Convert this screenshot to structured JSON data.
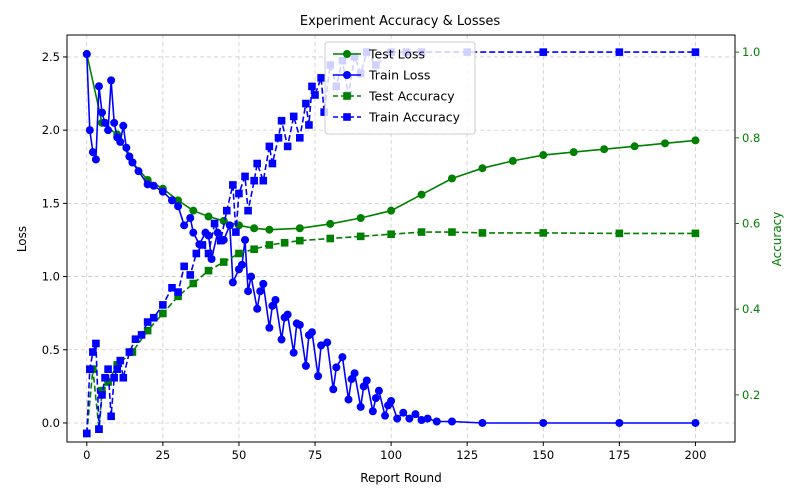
{
  "chart_data": {
    "type": "line",
    "title": "Experiment Accuracy & Losses",
    "xlabel": "Report Round",
    "ylabel_left": "Loss",
    "ylabel_right": "Accuracy",
    "xlim": [
      -6.5,
      213
    ],
    "ylim_left": [
      -0.13,
      2.65
    ],
    "ylim_right": [
      0.09,
      1.04
    ],
    "x_ticks": [
      0,
      25,
      50,
      75,
      100,
      125,
      150,
      175,
      200
    ],
    "y_left_ticks": [
      "0.0",
      "0.5",
      "1.0",
      "1.5",
      "2.0",
      "2.5"
    ],
    "y_right_ticks": [
      "0.2",
      "0.4",
      "0.6",
      "0.8",
      "1.0"
    ],
    "grid": true,
    "legend_position": "top-center",
    "colors": {
      "test": "#008000",
      "train": "#0000ff",
      "right_axis": "#008000",
      "grid": "#cccccc"
    },
    "loss_series": [
      {
        "name": "Test Loss",
        "color": "#008000",
        "marker": "circle",
        "style": "solid",
        "points": [
          [
            0,
            2.52
          ],
          [
            5,
            2.05
          ],
          [
            10,
            1.97
          ],
          [
            15,
            1.78
          ],
          [
            20,
            1.66
          ],
          [
            25,
            1.6
          ],
          [
            30,
            1.52
          ],
          [
            35,
            1.45
          ],
          [
            40,
            1.41
          ],
          [
            45,
            1.38
          ],
          [
            50,
            1.35
          ],
          [
            55,
            1.33
          ],
          [
            60,
            1.32
          ],
          [
            70,
            1.33
          ],
          [
            80,
            1.36
          ],
          [
            90,
            1.4
          ],
          [
            100,
            1.45
          ],
          [
            110,
            1.56
          ],
          [
            120,
            1.67
          ],
          [
            130,
            1.74
          ],
          [
            140,
            1.79
          ],
          [
            150,
            1.83
          ],
          [
            160,
            1.85
          ],
          [
            170,
            1.87
          ],
          [
            180,
            1.89
          ],
          [
            190,
            1.91
          ],
          [
            200,
            1.93
          ]
        ]
      },
      {
        "name": "Train Loss",
        "color": "#0000ff",
        "marker": "circle",
        "style": "solid",
        "points": [
          [
            0,
            2.52
          ],
          [
            1,
            2.0
          ],
          [
            2,
            1.85
          ],
          [
            3,
            1.8
          ],
          [
            4,
            2.3
          ],
          [
            5,
            2.12
          ],
          [
            6,
            2.05
          ],
          [
            7,
            2.0
          ],
          [
            8,
            2.34
          ],
          [
            9,
            2.05
          ],
          [
            10,
            1.95
          ],
          [
            11,
            1.92
          ],
          [
            12,
            2.03
          ],
          [
            13,
            1.88
          ],
          [
            14,
            1.82
          ],
          [
            15,
            1.78
          ],
          [
            17,
            1.72
          ],
          [
            20,
            1.63
          ],
          [
            22,
            1.62
          ],
          [
            25,
            1.58
          ],
          [
            28,
            1.52
          ],
          [
            30,
            1.48
          ],
          [
            32,
            1.35
          ],
          [
            34,
            1.4
          ],
          [
            35,
            1.3
          ],
          [
            37,
            1.22
          ],
          [
            39,
            1.3
          ],
          [
            40,
            1.28
          ],
          [
            41,
            1.12
          ],
          [
            43,
            1.3
          ],
          [
            45,
            1.25
          ],
          [
            47,
            1.35
          ],
          [
            48,
            0.96
          ],
          [
            50,
            1.05
          ],
          [
            51,
            1.08
          ],
          [
            52,
            1.25
          ],
          [
            53,
            0.9
          ],
          [
            54,
            1.0
          ],
          [
            56,
            0.78
          ],
          [
            57,
            0.9
          ],
          [
            58,
            0.95
          ],
          [
            60,
            0.65
          ],
          [
            61,
            0.8
          ],
          [
            62,
            0.84
          ],
          [
            64,
            0.57
          ],
          [
            65,
            0.72
          ],
          [
            66,
            0.74
          ],
          [
            68,
            0.48
          ],
          [
            69,
            0.68
          ],
          [
            70,
            0.67
          ],
          [
            72,
            0.39
          ],
          [
            73,
            0.6
          ],
          [
            74,
            0.62
          ],
          [
            76,
            0.32
          ],
          [
            77,
            0.53
          ],
          [
            79,
            0.55
          ],
          [
            81,
            0.23
          ],
          [
            82,
            0.38
          ],
          [
            84,
            0.45
          ],
          [
            86,
            0.16
          ],
          [
            87,
            0.3
          ],
          [
            88,
            0.34
          ],
          [
            90,
            0.11
          ],
          [
            91,
            0.25
          ],
          [
            92,
            0.29
          ],
          [
            94,
            0.08
          ],
          [
            95,
            0.17
          ],
          [
            96,
            0.22
          ],
          [
            98,
            0.05
          ],
          [
            99,
            0.12
          ],
          [
            100,
            0.15
          ],
          [
            102,
            0.03
          ],
          [
            104,
            0.07
          ],
          [
            106,
            0.03
          ],
          [
            108,
            0.06
          ],
          [
            110,
            0.02
          ],
          [
            112,
            0.03
          ],
          [
            115,
            0.01
          ],
          [
            120,
            0.01
          ],
          [
            130,
            0.0
          ],
          [
            150,
            0.0
          ],
          [
            175,
            0.0
          ],
          [
            200,
            0.0
          ]
        ]
      }
    ],
    "accuracy_series": [
      {
        "name": "Test Accuracy",
        "color": "#008000",
        "marker": "square",
        "style": "dashed",
        "points": [
          [
            0,
            0.11
          ],
          [
            2,
            0.26
          ],
          [
            4,
            0.12
          ],
          [
            5,
            0.21
          ],
          [
            7,
            0.23
          ],
          [
            10,
            0.27
          ],
          [
            15,
            0.3
          ],
          [
            20,
            0.35
          ],
          [
            25,
            0.39
          ],
          [
            30,
            0.43
          ],
          [
            35,
            0.46
          ],
          [
            40,
            0.49
          ],
          [
            45,
            0.51
          ],
          [
            50,
            0.53
          ],
          [
            55,
            0.54
          ],
          [
            60,
            0.55
          ],
          [
            65,
            0.555
          ],
          [
            70,
            0.56
          ],
          [
            80,
            0.565
          ],
          [
            90,
            0.57
          ],
          [
            100,
            0.575
          ],
          [
            110,
            0.58
          ],
          [
            120,
            0.58
          ],
          [
            130,
            0.578
          ],
          [
            150,
            0.578
          ],
          [
            175,
            0.577
          ],
          [
            200,
            0.577
          ]
        ]
      },
      {
        "name": "Train Accuracy",
        "color": "#0000ff",
        "marker": "square",
        "style": "dashed",
        "points": [
          [
            0,
            0.11
          ],
          [
            1,
            0.26
          ],
          [
            2,
            0.3
          ],
          [
            3,
            0.32
          ],
          [
            4,
            0.12
          ],
          [
            5,
            0.2
          ],
          [
            6,
            0.24
          ],
          [
            7,
            0.26
          ],
          [
            8,
            0.15
          ],
          [
            9,
            0.24
          ],
          [
            10,
            0.26
          ],
          [
            11,
            0.28
          ],
          [
            12,
            0.24
          ],
          [
            14,
            0.3
          ],
          [
            16,
            0.33
          ],
          [
            18,
            0.34
          ],
          [
            20,
            0.37
          ],
          [
            22,
            0.38
          ],
          [
            25,
            0.41
          ],
          [
            28,
            0.45
          ],
          [
            30,
            0.44
          ],
          [
            32,
            0.5
          ],
          [
            34,
            0.48
          ],
          [
            36,
            0.53
          ],
          [
            38,
            0.55
          ],
          [
            40,
            0.53
          ],
          [
            42,
            0.6
          ],
          [
            44,
            0.56
          ],
          [
            46,
            0.63
          ],
          [
            48,
            0.69
          ],
          [
            49,
            0.58
          ],
          [
            50,
            0.67
          ],
          [
            52,
            0.71
          ],
          [
            53,
            0.63
          ],
          [
            55,
            0.7
          ],
          [
            56,
            0.74
          ],
          [
            58,
            0.7
          ],
          [
            60,
            0.78
          ],
          [
            61,
            0.74
          ],
          [
            63,
            0.8
          ],
          [
            64,
            0.84
          ],
          [
            66,
            0.78
          ],
          [
            68,
            0.85
          ],
          [
            70,
            0.8
          ],
          [
            72,
            0.88
          ],
          [
            73,
            0.83
          ],
          [
            74,
            0.92
          ],
          [
            75,
            0.9
          ],
          [
            77,
            0.94
          ],
          [
            78,
            0.86
          ],
          [
            80,
            0.97
          ],
          [
            82,
            0.92
          ],
          [
            84,
            0.98
          ],
          [
            86,
            0.9
          ],
          [
            88,
            0.99
          ],
          [
            90,
            0.95
          ],
          [
            92,
            1.0
          ],
          [
            95,
            0.97
          ],
          [
            100,
            1.0
          ],
          [
            105,
            1.0
          ],
          [
            110,
            1.0
          ],
          [
            125,
            1.0
          ],
          [
            150,
            1.0
          ],
          [
            175,
            1.0
          ],
          [
            200,
            1.0
          ]
        ]
      }
    ],
    "legend": [
      "Test Loss",
      "Train Loss",
      "Test Accuracy",
      "Train Accuracy"
    ]
  }
}
